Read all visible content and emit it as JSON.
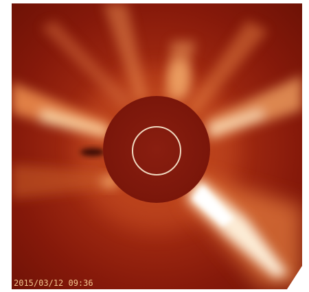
{
  "image": {
    "timestamp": "2015/03/12 09:36"
  }
}
